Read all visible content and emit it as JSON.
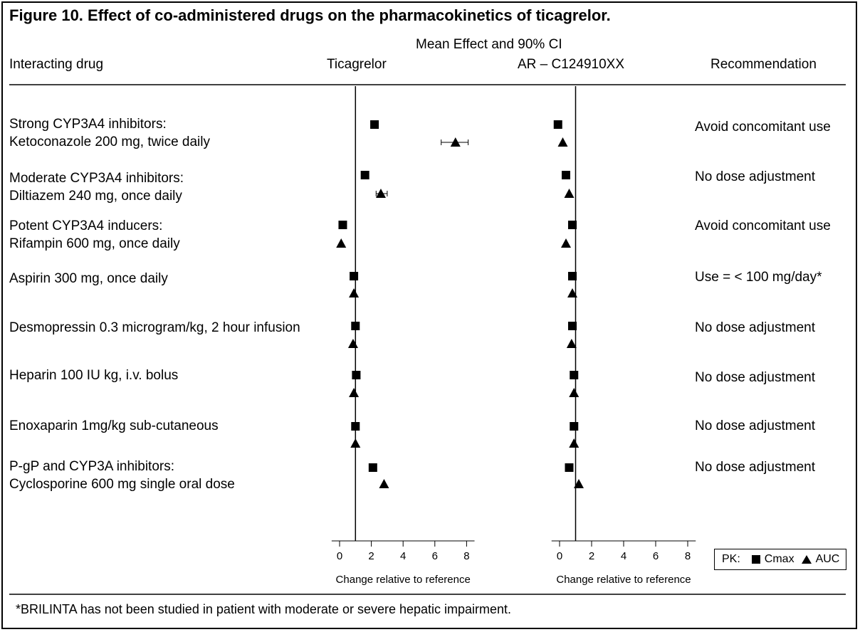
{
  "title": "Figure 10. Effect of co-administered drugs on the pharmacokinetics of ticagrelor.",
  "header": {
    "mean_effect": "Mean Effect and 90% CI",
    "drug_col": "Interacting drug",
    "panel1": "Ticagrelor",
    "panel2": "AR – C124910XX",
    "rec_col": "Recommendation"
  },
  "rows": [
    {
      "line1": "Strong CYP3A4 inhibitors:",
      "line2": "Ketoconazole 200 mg, twice daily",
      "rec": "Avoid concomitant use"
    },
    {
      "line1": "Moderate CYP3A4 inhibitors:",
      "line2": "Diltiazem 240 mg, once daily",
      "rec": "No dose adjustment"
    },
    {
      "line1": "Potent CYP3A4 inducers:",
      "line2": "Rifampin 600 mg, once daily",
      "rec": "Avoid concomitant use"
    },
    {
      "line1": "Aspirin 300 mg, once daily",
      "line2": "",
      "rec": "Use = < 100 mg/day*"
    },
    {
      "line1": "Desmopressin 0.3 microgram/kg, 2 hour infusion",
      "line2": "",
      "rec": "No dose adjustment"
    },
    {
      "line1": "Heparin 100 IU kg, i.v. bolus",
      "line2": "",
      "rec": "No dose adjustment"
    },
    {
      "line1": "Enoxaparin 1mg/kg sub-cutaneous",
      "line2": "",
      "rec": "No dose adjustment"
    },
    {
      "line1": "P-gP and CYP3A inhibitors:",
      "line2": "Cyclosporine 600 mg single oral dose",
      "rec": "No dose adjustment"
    }
  ],
  "legend": {
    "prefix": "PK:",
    "cmax": "Cmax",
    "auc": "AUC"
  },
  "footnote": "*BRILINTA has not been studied in patient with moderate or severe hepatic impairment.",
  "chart_data": [
    {
      "type": "scatter",
      "title": "Ticagrelor",
      "xlabel": "Change relative to reference",
      "xlim": [
        -0.5,
        8.5
      ],
      "xticks": [
        0,
        2,
        4,
        6,
        8
      ],
      "reference_line": 1,
      "categories": [
        "Ketoconazole",
        "Diltiazem",
        "Rifampin",
        "Aspirin",
        "Desmopressin",
        "Heparin",
        "Enoxaparin",
        "Cyclosporine"
      ],
      "series": [
        {
          "name": "Cmax",
          "values": [
            2.2,
            1.6,
            0.2,
            0.9,
            1.0,
            1.05,
            1.0,
            2.1
          ]
        },
        {
          "name": "AUC",
          "values": [
            7.3,
            2.6,
            0.1,
            0.9,
            0.85,
            0.9,
            1.0,
            2.8
          ],
          "ci": [
            [
              6.4,
              8.1
            ],
            [
              2.3,
              3.0
            ],
            null,
            null,
            null,
            null,
            null,
            null
          ]
        }
      ]
    },
    {
      "type": "scatter",
      "title": "AR – C124910XX",
      "xlabel": "Change relative to reference",
      "xlim": [
        -0.5,
        8.5
      ],
      "xticks": [
        0,
        2,
        4,
        6,
        8
      ],
      "reference_line": 1,
      "categories": [
        "Ketoconazole",
        "Diltiazem",
        "Rifampin",
        "Aspirin",
        "Desmopressin",
        "Heparin",
        "Enoxaparin",
        "Cyclosporine"
      ],
      "series": [
        {
          "name": "Cmax",
          "values": [
            -0.1,
            0.4,
            0.8,
            0.8,
            0.8,
            0.9,
            0.9,
            0.6
          ]
        },
        {
          "name": "AUC",
          "values": [
            0.2,
            0.6,
            0.4,
            0.8,
            0.75,
            0.9,
            0.9,
            1.2
          ]
        }
      ]
    }
  ]
}
